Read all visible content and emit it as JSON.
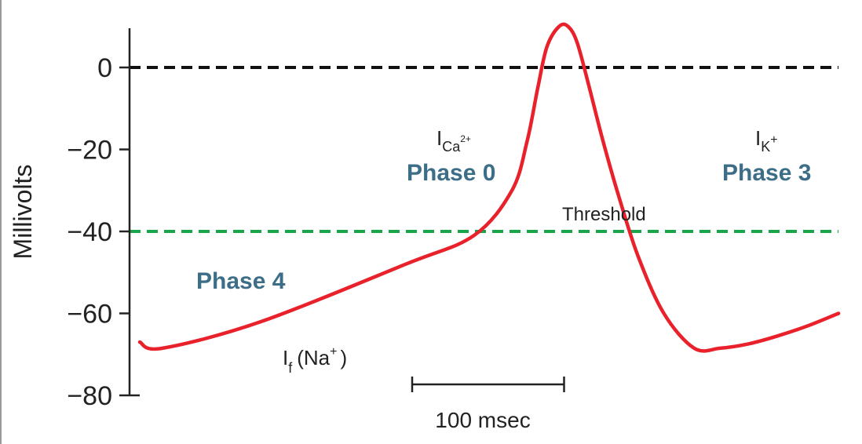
{
  "chart_data": {
    "type": "line",
    "ylabel": "Millivolts",
    "ylim": [
      -80,
      10
    ],
    "yticks": [
      0,
      -20,
      -40,
      -60,
      -80
    ],
    "ytick_labels": [
      "0",
      "−20",
      "−40",
      "−60",
      "−80"
    ],
    "reference_lines": [
      {
        "value": 0,
        "color": "#111111",
        "style": "dashed"
      },
      {
        "value": -40,
        "label": "Threshold",
        "color": "#1aa54b",
        "style": "dashed"
      }
    ],
    "series": [
      {
        "color": "#e8212a",
        "time_unit": "msec",
        "t": [
          0,
          15,
          80,
          175,
          220,
          245,
          255,
          262,
          268,
          276,
          282,
          288,
          296,
          305,
          315,
          328,
          345,
          365,
          382,
          400,
          420,
          440,
          460
        ],
        "mv": [
          -67,
          -68.5,
          -62,
          -48,
          -41,
          -30,
          -18,
          -5,
          5,
          10,
          10,
          6,
          -5,
          -18,
          -31,
          -46,
          -60,
          -68.5,
          -68.5,
          -67.5,
          -65.5,
          -63,
          -60
        ]
      }
    ],
    "scale_bar": {
      "duration_msec": 100,
      "label": "100 msec"
    },
    "annotations": {
      "phase4": "Phase 4",
      "phase0": "Phase 0",
      "phase3": "Phase 3",
      "threshold": "Threshold",
      "if_main": "I",
      "if_sub": "f",
      "if_paren_open": "(Na",
      "if_sup": "+",
      "if_paren_close": ")",
      "ica_main": "I",
      "ica_sub": "Ca",
      "ica_sup": "2+",
      "ik_main": "I",
      "ik_sub": "K",
      "ik_sup": "+"
    }
  }
}
